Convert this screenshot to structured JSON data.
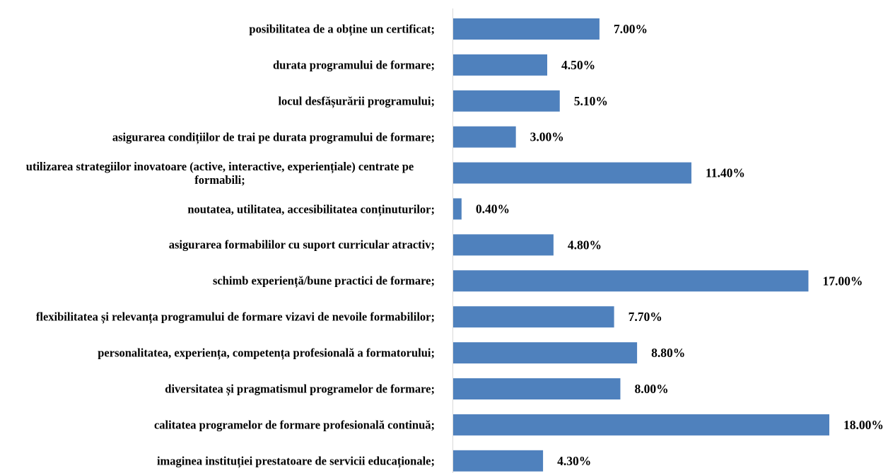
{
  "chart_data": {
    "type": "bar",
    "orientation": "horizontal",
    "color": "#4f81bd",
    "categories": [
      "posibilitatea de a obține un certificat;",
      "durata programului de formare;",
      "locul desfășurării programului;",
      "asigurarea condițiilor de trai pe durata programului de formare;",
      "utilizarea strategiilor inovatoare (active, interactive, experiențiale) centrate pe formabili;",
      "noutatea, utilitatea, accesibilitatea  conținuturilor;",
      "asigurarea formabililor cu suport curricular atractiv;",
      "schimb experiență/bune practici de formare;",
      "flexibilitatea și relevanța programului de formare vizavi de nevoile formabililor;",
      "personalitatea, experiența, competența profesională a formatorului;",
      "diversitatea și pragmatismul programelor de formare;",
      "calitatea programelor de formare profesională continuă;",
      "imaginea instituției prestatoare de servicii educaționale;"
    ],
    "values": [
      7,
      4.5,
      5.1,
      3,
      11.4,
      0.4,
      4.8,
      17,
      7.7,
      8.8,
      8,
      18,
      4.3
    ],
    "value_labels": [
      "7.00%",
      "4.50%",
      "5.10%",
      "3.00%",
      "11.40%",
      "0.40%",
      "4.80%",
      "17.00%",
      "7.70%",
      "8.80%",
      "8.00%",
      "18.00%",
      "4.30%"
    ]
  }
}
